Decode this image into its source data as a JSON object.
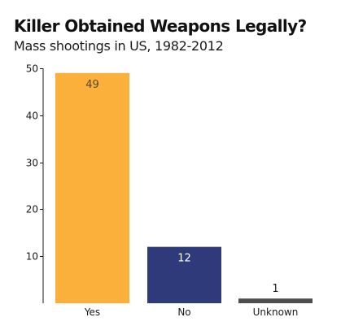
{
  "chart_data": {
    "type": "bar",
    "title": "Killer Obtained Weapons Legally?",
    "subtitle": "Mass shootings in US, 1982-2012",
    "xlabel": "",
    "ylabel": "",
    "categories": [
      "Yes",
      "No",
      "Unknown"
    ],
    "values": [
      49,
      12,
      1
    ],
    "data_labels": [
      "49",
      "12",
      "1"
    ],
    "colors": [
      "#fbb03b",
      "#2e3a7a",
      "#4d4d4d"
    ],
    "label_colors": [
      "#5a4632",
      "#ffffff",
      "#1a1a1a"
    ],
    "ylim": [
      0,
      50
    ],
    "yticks": [
      10,
      20,
      30,
      40,
      50
    ],
    "grid": false,
    "legend": "none"
  }
}
